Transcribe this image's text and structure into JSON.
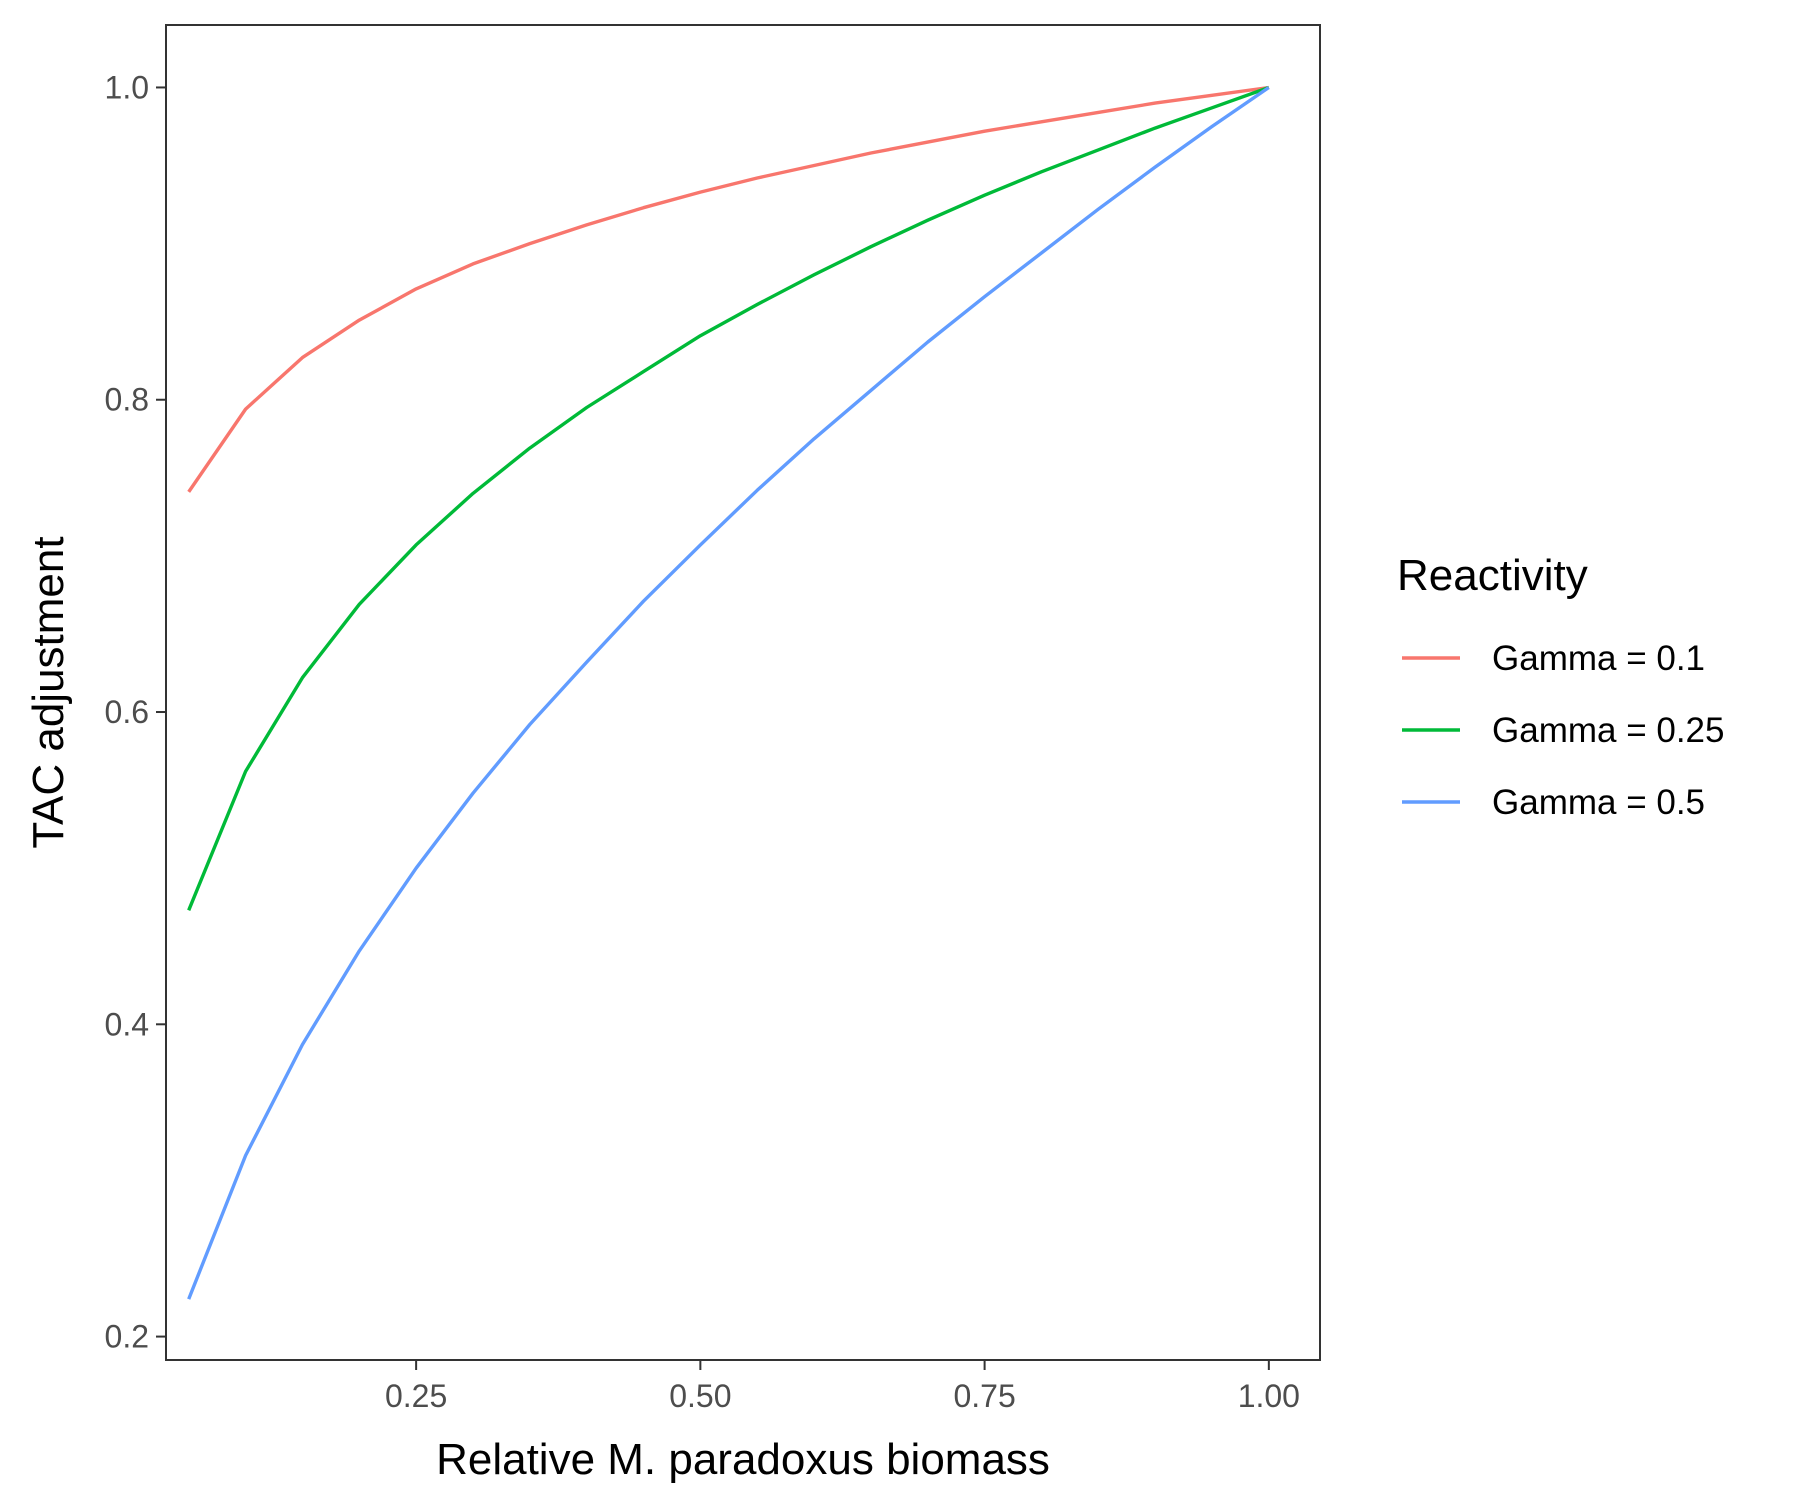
{
  "chart_data": {
    "type": "line",
    "xlabel": "Relative M. paradoxus biomass",
    "ylabel": "TAC adjustment",
    "xlim": [
      0.03,
      1.045
    ],
    "ylim": [
      0.185,
      1.04
    ],
    "x_ticks": [
      0.25,
      0.5,
      0.75,
      1.0
    ],
    "x_tick_labels": [
      "0.25",
      "0.50",
      "0.75",
      "1.00"
    ],
    "y_ticks": [
      0.2,
      0.4,
      0.6,
      0.8,
      1.0
    ],
    "y_tick_labels": [
      "0.2",
      "0.4",
      "0.6",
      "0.8",
      "1.0"
    ],
    "grid": false,
    "legend": {
      "title": "Reactivity",
      "position": "right"
    },
    "x": [
      0.05,
      0.1,
      0.15,
      0.2,
      0.25,
      0.3,
      0.35,
      0.4,
      0.45,
      0.5,
      0.55,
      0.6,
      0.65,
      0.7,
      0.75,
      0.8,
      0.85,
      0.9,
      0.95,
      1.0
    ],
    "series": [
      {
        "name": "Gamma = 0.1",
        "color": "#F8766D",
        "values": [
          0.741,
          0.794,
          0.827,
          0.851,
          0.871,
          0.887,
          0.9,
          0.912,
          0.923,
          0.933,
          0.942,
          0.95,
          0.958,
          0.965,
          0.972,
          0.978,
          0.984,
          0.99,
          0.995,
          1.0
        ]
      },
      {
        "name": "Gamma = 0.25",
        "color": "#00BA38",
        "values": [
          0.473,
          0.562,
          0.622,
          0.669,
          0.707,
          0.74,
          0.769,
          0.795,
          0.818,
          0.841,
          0.861,
          0.88,
          0.898,
          0.915,
          0.931,
          0.946,
          0.96,
          0.974,
          0.987,
          1.0
        ]
      },
      {
        "name": "Gamma = 0.5",
        "color": "#619CFF",
        "values": [
          0.224,
          0.316,
          0.387,
          0.447,
          0.5,
          0.548,
          0.592,
          0.632,
          0.671,
          0.707,
          0.742,
          0.775,
          0.806,
          0.837,
          0.866,
          0.894,
          0.922,
          0.949,
          0.975,
          1.0
        ]
      }
    ]
  }
}
